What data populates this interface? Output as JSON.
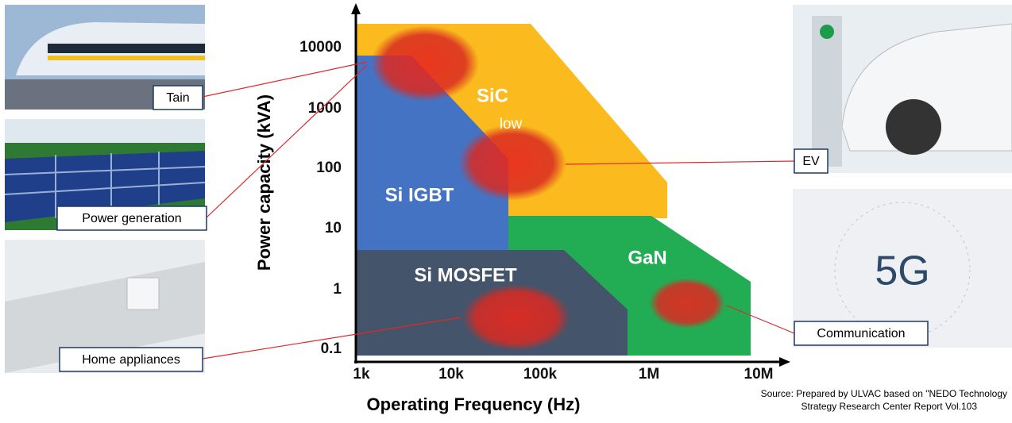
{
  "axes": {
    "x_label": "Operating Frequency (Hz)",
    "y_label": "Power capacity (kVA)",
    "x_ticks": [
      "1k",
      "10k",
      "100k",
      "1M",
      "10M"
    ],
    "y_ticks": [
      "10000",
      "1000",
      "100",
      "10",
      "1",
      "0.1"
    ]
  },
  "regions": {
    "sic": "SiC",
    "sic_note": "low",
    "si_igbt": "Si IGBT",
    "si_mosfet": "Si MOSFET",
    "gan": "GaN"
  },
  "callouts": {
    "train": "Tain",
    "power": "Power generation",
    "home": "Home appliances",
    "ev": "EV",
    "communication": "Communication"
  },
  "photo_text": "5G",
  "source": [
    "Source: Prepared by ULVAC  based on \"NEDO Technology",
    "Strategy Research Center Report Vol.103"
  ]
}
